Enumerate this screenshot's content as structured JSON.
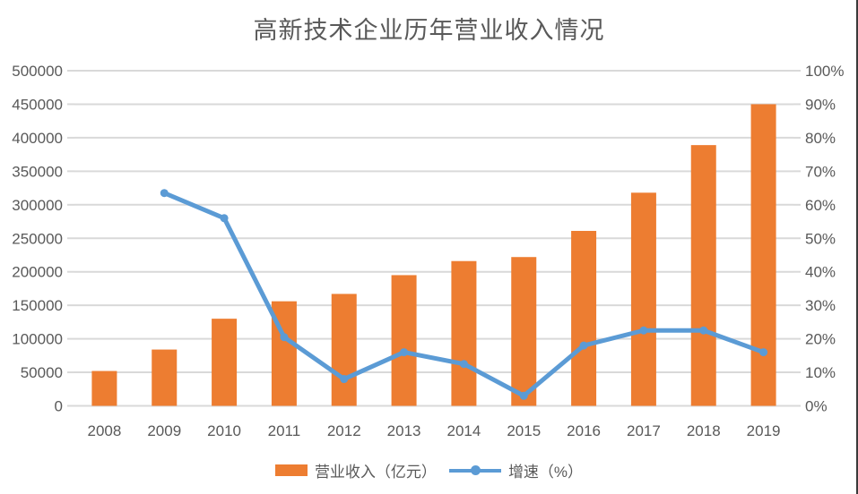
{
  "chart_data": {
    "type": "combo",
    "title": "高新技术企业历年营业收入情况",
    "categories": [
      "2008",
      "2009",
      "2010",
      "2011",
      "2012",
      "2013",
      "2014",
      "2015",
      "2016",
      "2017",
      "2018",
      "2019"
    ],
    "series": [
      {
        "name": "营业收入（亿元）",
        "type": "bar",
        "axis": "left",
        "color": "#ED7D31",
        "values": [
          52000,
          84000,
          130000,
          156000,
          167000,
          195000,
          216000,
          222000,
          261000,
          318000,
          389000,
          450000
        ]
      },
      {
        "name": "增速（%）",
        "type": "line",
        "axis": "right",
        "color": "#5B9BD5",
        "values": [
          null,
          63.5,
          56,
          20.5,
          8,
          16,
          12.5,
          3,
          18,
          22.5,
          22.5,
          16
        ]
      }
    ],
    "left_axis": {
      "min": 0,
      "max": 500000,
      "step": 50000,
      "labels": [
        "0",
        "50000",
        "100000",
        "150000",
        "200000",
        "250000",
        "300000",
        "350000",
        "400000",
        "450000",
        "500000"
      ]
    },
    "right_axis": {
      "min": 0,
      "max": 100,
      "step": 10,
      "labels": [
        "0%",
        "10%",
        "20%",
        "30%",
        "40%",
        "50%",
        "60%",
        "70%",
        "80%",
        "90%",
        "100%"
      ]
    },
    "grid": true,
    "legend_position": "bottom",
    "colors": {
      "text": "#595959",
      "gridline": "#D9D9D9",
      "bar": "#ED7D31",
      "line": "#5B9BD5"
    }
  }
}
